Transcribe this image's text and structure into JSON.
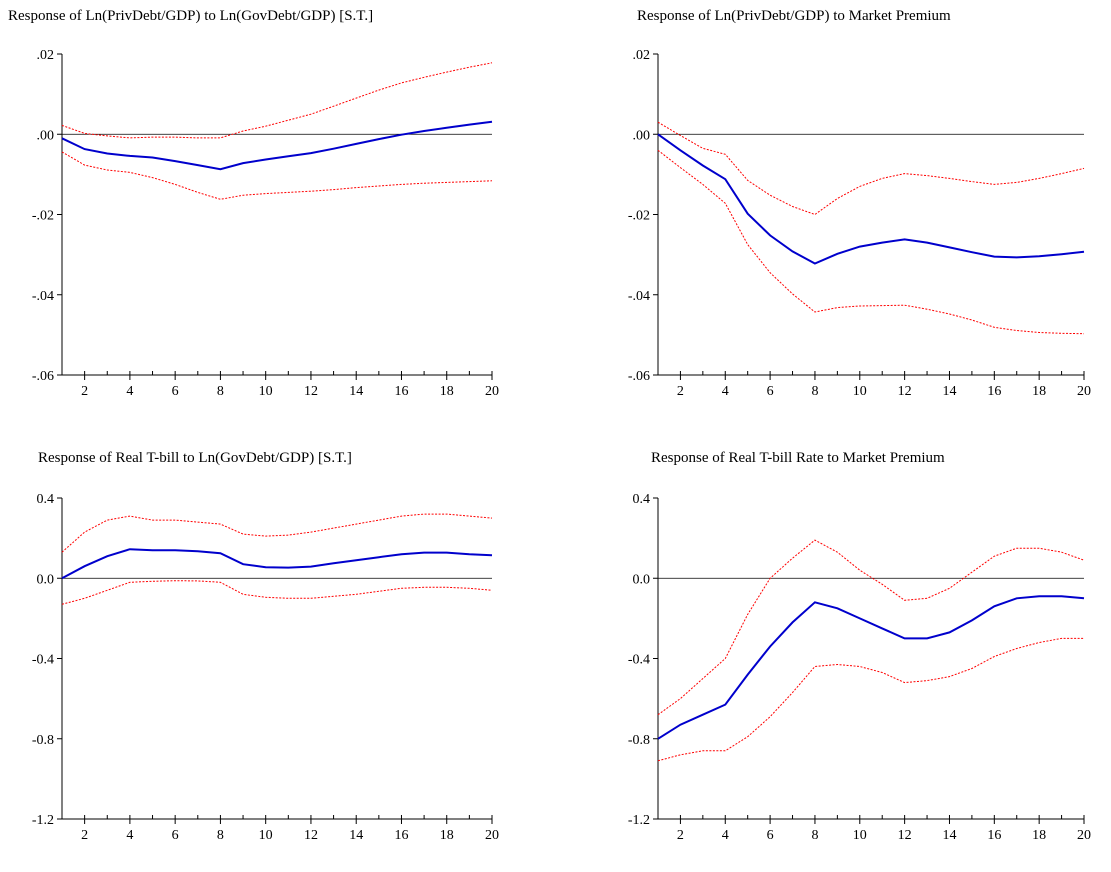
{
  "chart_data": [
    {
      "type": "line",
      "title": "Response of Ln(PrivDebt/GDP) to Ln(GovDebt/GDP) [S.T.]",
      "x": [
        1,
        2,
        3,
        4,
        5,
        6,
        7,
        8,
        9,
        10,
        11,
        12,
        13,
        14,
        15,
        16,
        17,
        18,
        19,
        20
      ],
      "xticks": [
        2,
        4,
        6,
        8,
        10,
        12,
        14,
        16,
        18,
        20
      ],
      "ylim": [
        -0.06,
        0.02
      ],
      "yticks": [
        -0.06,
        -0.04,
        -0.02,
        0.0,
        0.02
      ],
      "ytick_labels": [
        "-.06",
        "-.04",
        "-.02",
        ".00",
        ".02"
      ],
      "series": [
        {
          "role": "response",
          "color": "#0000cc",
          "values": [
            -0.001,
            -0.0037,
            -0.0048,
            -0.0054,
            -0.0058,
            -0.0067,
            -0.0077,
            -0.0087,
            -0.0072,
            -0.0063,
            -0.0055,
            -0.0047,
            -0.0036,
            -0.0024,
            -0.0012,
            -0.0001,
            0.0008,
            0.0016,
            0.0024,
            0.0031
          ]
        },
        {
          "role": "upper",
          "color": "#ff0000",
          "values": [
            0.0022,
            0.0002,
            -0.0004,
            -0.0009,
            -0.0007,
            -0.0007,
            -0.0009,
            -0.0009,
            0.0008,
            0.002,
            0.0035,
            0.005,
            0.007,
            0.009,
            0.011,
            0.0128,
            0.0142,
            0.0155,
            0.0167,
            0.0178
          ]
        },
        {
          "role": "lower",
          "color": "#ff0000",
          "values": [
            -0.0044,
            -0.0077,
            -0.0089,
            -0.0095,
            -0.0108,
            -0.0125,
            -0.0145,
            -0.0162,
            -0.0152,
            -0.0148,
            -0.0145,
            -0.0142,
            -0.0138,
            -0.0133,
            -0.0129,
            -0.0125,
            -0.0122,
            -0.012,
            -0.0118,
            -0.0116
          ]
        }
      ]
    },
    {
      "type": "line",
      "title": "Response of Ln(PrivDebt/GDP) to Market Premium",
      "x": [
        1,
        2,
        3,
        4,
        5,
        6,
        7,
        8,
        9,
        10,
        11,
        12,
        13,
        14,
        15,
        16,
        17,
        18,
        19,
        20
      ],
      "xticks": [
        2,
        4,
        6,
        8,
        10,
        12,
        14,
        16,
        18,
        20
      ],
      "ylim": [
        -0.06,
        0.02
      ],
      "yticks": [
        -0.06,
        -0.04,
        -0.02,
        0.0,
        0.02
      ],
      "ytick_labels": [
        "-.06",
        "-.04",
        "-.02",
        ".00",
        ".02"
      ],
      "series": [
        {
          "role": "response",
          "color": "#0000cc",
          "values": [
            0.0,
            -0.004,
            -0.0078,
            -0.0112,
            -0.0198,
            -0.0252,
            -0.0292,
            -0.0322,
            -0.0298,
            -0.028,
            -0.027,
            -0.0262,
            -0.027,
            -0.0282,
            -0.0294,
            -0.0305,
            -0.0307,
            -0.0304,
            -0.0299,
            -0.0293
          ]
        },
        {
          "role": "upper",
          "color": "#ff0000",
          "values": [
            0.003,
            -0.0003,
            -0.0035,
            -0.005,
            -0.0115,
            -0.0152,
            -0.018,
            -0.02,
            -0.016,
            -0.013,
            -0.011,
            -0.0098,
            -0.0103,
            -0.011,
            -0.0118,
            -0.0125,
            -0.012,
            -0.011,
            -0.0098,
            -0.0085
          ]
        },
        {
          "role": "lower",
          "color": "#ff0000",
          "values": [
            -0.004,
            -0.0083,
            -0.0125,
            -0.0172,
            -0.0275,
            -0.0345,
            -0.0398,
            -0.0443,
            -0.0432,
            -0.0428,
            -0.0427,
            -0.0426,
            -0.0436,
            -0.0448,
            -0.0463,
            -0.0481,
            -0.0489,
            -0.0494,
            -0.0496,
            -0.0497
          ]
        }
      ]
    },
    {
      "type": "line",
      "title": "Response of Real T-bill to Ln(GovDebt/GDP) [S.T.]",
      "x": [
        1,
        2,
        3,
        4,
        5,
        6,
        7,
        8,
        9,
        10,
        11,
        12,
        13,
        14,
        15,
        16,
        17,
        18,
        19,
        20
      ],
      "xticks": [
        2,
        4,
        6,
        8,
        10,
        12,
        14,
        16,
        18,
        20
      ],
      "ylim": [
        -1.2,
        0.4
      ],
      "yticks": [
        -1.2,
        -0.8,
        -0.4,
        0.0,
        0.4
      ],
      "ytick_labels": [
        "-1.2",
        "-0.8",
        "-0.4",
        "0.0",
        "0.4"
      ],
      "series": [
        {
          "role": "response",
          "color": "#0000cc",
          "values": [
            0.0,
            0.06,
            0.11,
            0.145,
            0.14,
            0.14,
            0.135,
            0.125,
            0.07,
            0.055,
            0.053,
            0.058,
            0.075,
            0.09,
            0.105,
            0.12,
            0.128,
            0.128,
            0.12,
            0.115
          ]
        },
        {
          "role": "upper",
          "color": "#ff0000",
          "values": [
            0.13,
            0.23,
            0.29,
            0.31,
            0.29,
            0.29,
            0.28,
            0.27,
            0.22,
            0.21,
            0.215,
            0.23,
            0.25,
            0.27,
            0.29,
            0.31,
            0.32,
            0.32,
            0.31,
            0.3
          ]
        },
        {
          "role": "lower",
          "color": "#ff0000",
          "values": [
            -0.13,
            -0.1,
            -0.06,
            -0.02,
            -0.015,
            -0.012,
            -0.013,
            -0.02,
            -0.08,
            -0.095,
            -0.1,
            -0.1,
            -0.09,
            -0.08,
            -0.065,
            -0.05,
            -0.045,
            -0.045,
            -0.05,
            -0.06
          ]
        }
      ]
    },
    {
      "type": "line",
      "title": "Response of Real T-bill Rate to Market Premium",
      "x": [
        1,
        2,
        3,
        4,
        5,
        6,
        7,
        8,
        9,
        10,
        11,
        12,
        13,
        14,
        15,
        16,
        17,
        18,
        19,
        20
      ],
      "xticks": [
        2,
        4,
        6,
        8,
        10,
        12,
        14,
        16,
        18,
        20
      ],
      "ylim": [
        -1.2,
        0.4
      ],
      "yticks": [
        -1.2,
        -0.8,
        -0.4,
        0.0,
        0.4
      ],
      "ytick_labels": [
        "-1.2",
        "-0.8",
        "-0.4",
        "0.0",
        "0.4"
      ],
      "series": [
        {
          "role": "response",
          "color": "#0000cc",
          "values": [
            -0.8,
            -0.73,
            -0.68,
            -0.63,
            -0.48,
            -0.34,
            -0.22,
            -0.12,
            -0.15,
            -0.2,
            -0.25,
            -0.3,
            -0.3,
            -0.27,
            -0.21,
            -0.14,
            -0.1,
            -0.09,
            -0.09,
            -0.1
          ]
        },
        {
          "role": "upper",
          "color": "#ff0000",
          "values": [
            -0.68,
            -0.6,
            -0.5,
            -0.4,
            -0.18,
            0.0,
            0.1,
            0.19,
            0.13,
            0.04,
            -0.03,
            -0.11,
            -0.1,
            -0.05,
            0.03,
            0.11,
            0.15,
            0.15,
            0.13,
            0.09
          ]
        },
        {
          "role": "lower",
          "color": "#ff0000",
          "values": [
            -0.91,
            -0.88,
            -0.86,
            -0.86,
            -0.79,
            -0.69,
            -0.57,
            -0.44,
            -0.43,
            -0.44,
            -0.47,
            -0.52,
            -0.51,
            -0.49,
            -0.45,
            -0.39,
            -0.35,
            -0.32,
            -0.3,
            -0.3
          ]
        }
      ]
    }
  ]
}
